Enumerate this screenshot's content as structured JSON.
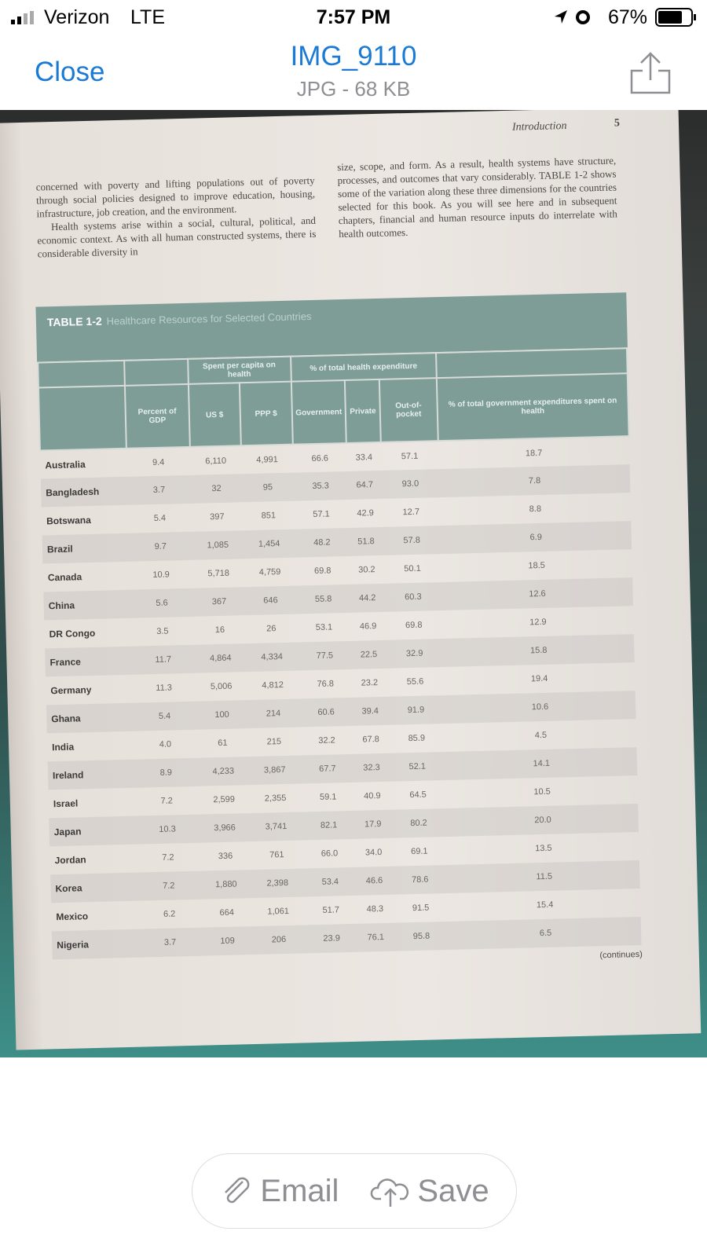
{
  "status_bar": {
    "carrier": "Verizon",
    "network": "LTE",
    "time": "7:57 PM",
    "battery": "67%"
  },
  "header": {
    "close": "Close",
    "title": "IMG_9110",
    "subtitle": "JPG - 68 KB"
  },
  "photo": {
    "running_head": "Introduction",
    "page_number": "5",
    "left_column": [
      "concerned with poverty and lifting populations out of poverty through social policies designed to improve education, housing, infrastructure, job creation, and the environment.",
      "Health systems arise within a social, cultural, political, and economic context. As with all human constructed systems, there is considerable diversity in"
    ],
    "right_column": [
      "size, scope, and form. As a result, health systems have structure, processes, and outcomes that vary considerably. TABLE 1-2 shows some of the variation along these three dimensions for the countries selected for this book. As you will see here and in subsequent chapters, financial and human resource inputs do interrelate with health outcomes."
    ],
    "table": {
      "label": "TABLE 1-2",
      "caption": "Healthcare Resources for Selected Countries",
      "group_headers": [
        "Spent per capita on health",
        "% of total health expenditure"
      ],
      "columns": [
        "Percent of GDP",
        "US $",
        "PPP $",
        "Government",
        "Private",
        "Out-of-pocket",
        "% of total government expenditures spent on health"
      ],
      "rows": [
        [
          "Australia",
          "9.4",
          "6,110",
          "4,991",
          "66.6",
          "33.4",
          "57.1",
          "18.7"
        ],
        [
          "Bangladesh",
          "3.7",
          "32",
          "95",
          "35.3",
          "64.7",
          "93.0",
          "7.8"
        ],
        [
          "Botswana",
          "5.4",
          "397",
          "851",
          "57.1",
          "42.9",
          "12.7",
          "8.8"
        ],
        [
          "Brazil",
          "9.7",
          "1,085",
          "1,454",
          "48.2",
          "51.8",
          "57.8",
          "6.9"
        ],
        [
          "Canada",
          "10.9",
          "5,718",
          "4,759",
          "69.8",
          "30.2",
          "50.1",
          "18.5"
        ],
        [
          "China",
          "5.6",
          "367",
          "646",
          "55.8",
          "44.2",
          "60.3",
          "12.6"
        ],
        [
          "DR Congo",
          "3.5",
          "16",
          "26",
          "53.1",
          "46.9",
          "69.8",
          "12.9"
        ],
        [
          "France",
          "11.7",
          "4,864",
          "4,334",
          "77.5",
          "22.5",
          "32.9",
          "15.8"
        ],
        [
          "Germany",
          "11.3",
          "5,006",
          "4,812",
          "76.8",
          "23.2",
          "55.6",
          "19.4"
        ],
        [
          "Ghana",
          "5.4",
          "100",
          "214",
          "60.6",
          "39.4",
          "91.9",
          "10.6"
        ],
        [
          "India",
          "4.0",
          "61",
          "215",
          "32.2",
          "67.8",
          "85.9",
          "4.5"
        ],
        [
          "Ireland",
          "8.9",
          "4,233",
          "3,867",
          "67.7",
          "32.3",
          "52.1",
          "14.1"
        ],
        [
          "Israel",
          "7.2",
          "2,599",
          "2,355",
          "59.1",
          "40.9",
          "64.5",
          "10.5"
        ],
        [
          "Japan",
          "10.3",
          "3,966",
          "3,741",
          "82.1",
          "17.9",
          "80.2",
          "20.0"
        ],
        [
          "Jordan",
          "7.2",
          "336",
          "761",
          "66.0",
          "34.0",
          "69.1",
          "13.5"
        ],
        [
          "Korea",
          "7.2",
          "1,880",
          "2,398",
          "53.4",
          "46.6",
          "78.6",
          "11.5"
        ],
        [
          "Mexico",
          "6.2",
          "664",
          "1,061",
          "51.7",
          "48.3",
          "91.5",
          "15.4"
        ],
        [
          "Nigeria",
          "3.7",
          "109",
          "206",
          "23.9",
          "76.1",
          "95.8",
          "6.5"
        ]
      ],
      "continued": "(continues)"
    }
  },
  "footer": {
    "email": "Email",
    "save": "Save"
  }
}
